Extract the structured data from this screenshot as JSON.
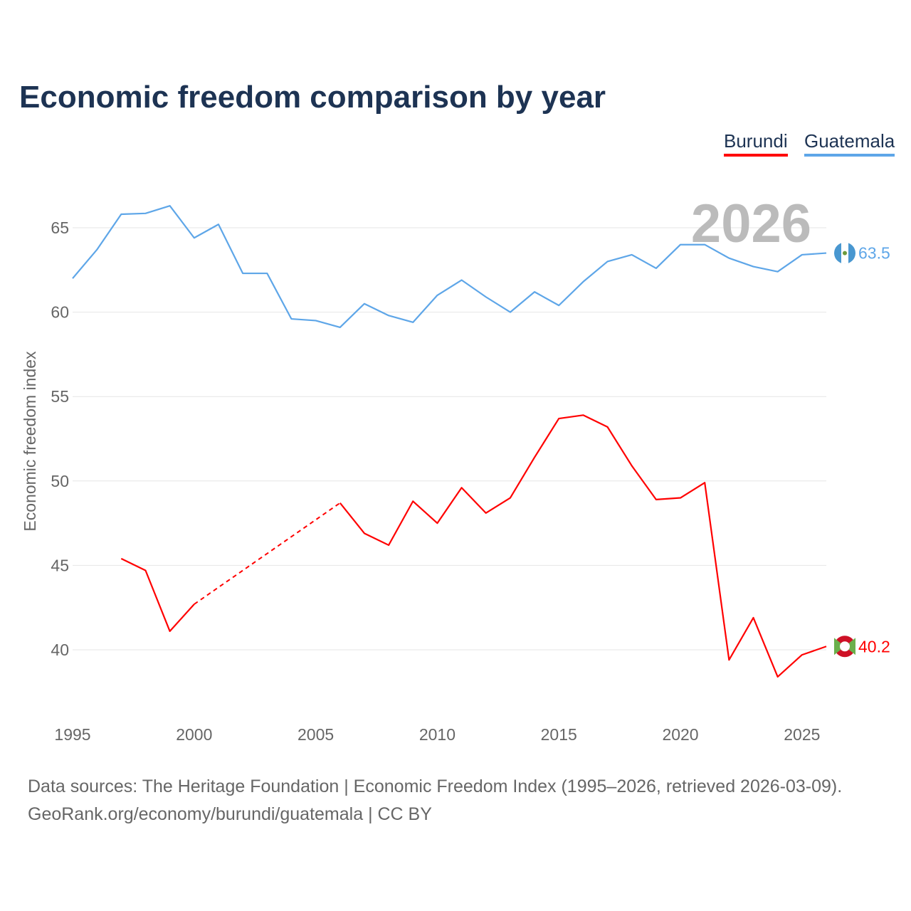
{
  "chart_data": {
    "type": "line",
    "title": "Economic freedom comparison by year",
    "xlabel": "",
    "ylabel": "Economic freedom index",
    "xlim": [
      1995,
      2026
    ],
    "ylim": [
      36.5,
      68.5
    ],
    "yticks": [
      40,
      45,
      50,
      55,
      60,
      65
    ],
    "xticks": [
      1995,
      2000,
      2005,
      2010,
      2015,
      2020,
      2025
    ],
    "grid": true,
    "legend_placement": "top-right",
    "year_label": "2026",
    "x": [
      1995,
      1996,
      1997,
      1998,
      1999,
      2000,
      2001,
      2002,
      2003,
      2004,
      2005,
      2006,
      2007,
      2008,
      2009,
      2010,
      2011,
      2012,
      2013,
      2014,
      2015,
      2016,
      2017,
      2018,
      2019,
      2020,
      2021,
      2022,
      2023,
      2024,
      2025,
      2026
    ],
    "series": [
      {
        "name": "Burundi",
        "color": "#ff0000",
        "end_label": "40.2",
        "values": [
          null,
          null,
          45.4,
          44.7,
          41.1,
          42.7,
          null,
          null,
          null,
          null,
          null,
          48.7,
          46.9,
          46.2,
          48.8,
          47.5,
          49.6,
          48.1,
          49.0,
          51.4,
          53.7,
          53.9,
          53.2,
          50.9,
          48.9,
          49.0,
          49.9,
          39.4,
          41.9,
          38.4,
          39.7,
          40.2
        ]
      },
      {
        "name": "Guatemala",
        "color": "#5ea6e8",
        "end_label": "63.5",
        "values": [
          62.0,
          63.7,
          65.8,
          65.85,
          66.3,
          64.4,
          65.2,
          62.3,
          62.3,
          59.6,
          59.5,
          59.1,
          60.5,
          59.8,
          59.4,
          61.0,
          61.9,
          60.9,
          60.0,
          61.2,
          60.4,
          61.8,
          63.0,
          63.4,
          62.6,
          64.0,
          64.0,
          63.2,
          62.7,
          62.4,
          63.4,
          63.5
        ]
      }
    ]
  },
  "footer": {
    "line1": "Data sources: The Heritage Foundation | Economic Freedom Index (1995–2026, retrieved 2026-03-09).",
    "line2": "GeoRank.org/economy/burundi/guatemala | CC BY"
  }
}
